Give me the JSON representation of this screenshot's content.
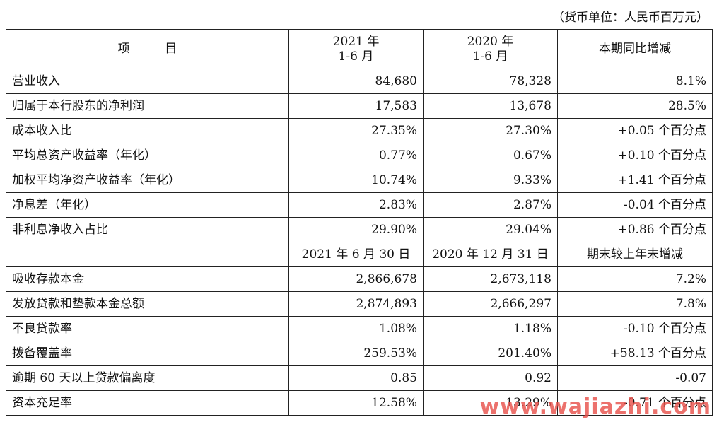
{
  "unit_note": "（货币单位：人民币百万元）",
  "header": {
    "col_item": "项 目",
    "col_2021_line1": "2021 年",
    "col_2021_line2": "1-6 月",
    "col_2020_line1": "2020 年",
    "col_2020_line2": "1-6 月",
    "col_change": "本期同比增减"
  },
  "rows_a": [
    {
      "label": "营业收入",
      "v2021": "84,680",
      "v2020": "78,328",
      "change": "8.1%"
    },
    {
      "label": "归属于本行股东的净利润",
      "v2021": "17,583",
      "v2020": "13,678",
      "change": "28.5%"
    },
    {
      "label": "成本收入比",
      "v2021": "27.35%",
      "v2020": "27.30%",
      "change": "+0.05 个百分点"
    },
    {
      "label": "平均总资产收益率（年化）",
      "v2021": "0.77%",
      "v2020": "0.67%",
      "change": "+0.10 个百分点"
    },
    {
      "label": "加权平均净资产收益率（年化）",
      "v2021": "10.74%",
      "v2020": "9.33%",
      "change": "+1.41 个百分点"
    },
    {
      "label": "净息差（年化）",
      "v2021": "2.83%",
      "v2020": "2.87%",
      "change": "-0.04 个百分点"
    },
    {
      "label": "非利息净收入占比",
      "v2021": "29.90%",
      "v2020": "29.04%",
      "change": "+0.86 个百分点"
    }
  ],
  "subheader": {
    "col_blank": "",
    "col_a": "2021 年 6 月 30 日",
    "col_b": "2020 年 12 月 31 日",
    "col_change": "期末较上年末增减"
  },
  "rows_b": [
    {
      "label": "吸收存款本金",
      "v2021": "2,866,678",
      "v2020": "2,673,118",
      "change": "7.2%"
    },
    {
      "label": "发放贷款和垫款本金总额",
      "v2021": "2,874,893",
      "v2020": "2,666,297",
      "change": "7.8%"
    },
    {
      "label": "不良贷款率",
      "v2021": "1.08%",
      "v2020": "1.18%",
      "change": "-0.10 个百分点"
    },
    {
      "label": "拨备覆盖率",
      "v2021": "259.53%",
      "v2020": "201.40%",
      "change": "+58.13 个百分点"
    },
    {
      "label": "逾期 60 天以上贷款偏离度",
      "v2021": "0.85",
      "v2020": "0.92",
      "change": "-0.07"
    },
    {
      "label": "资本充足率",
      "v2021": "12.58%",
      "v2020": "13.29%",
      "change": "-0.71 个百分点"
    }
  ],
  "watermark": "www.wajiazhi.com"
}
